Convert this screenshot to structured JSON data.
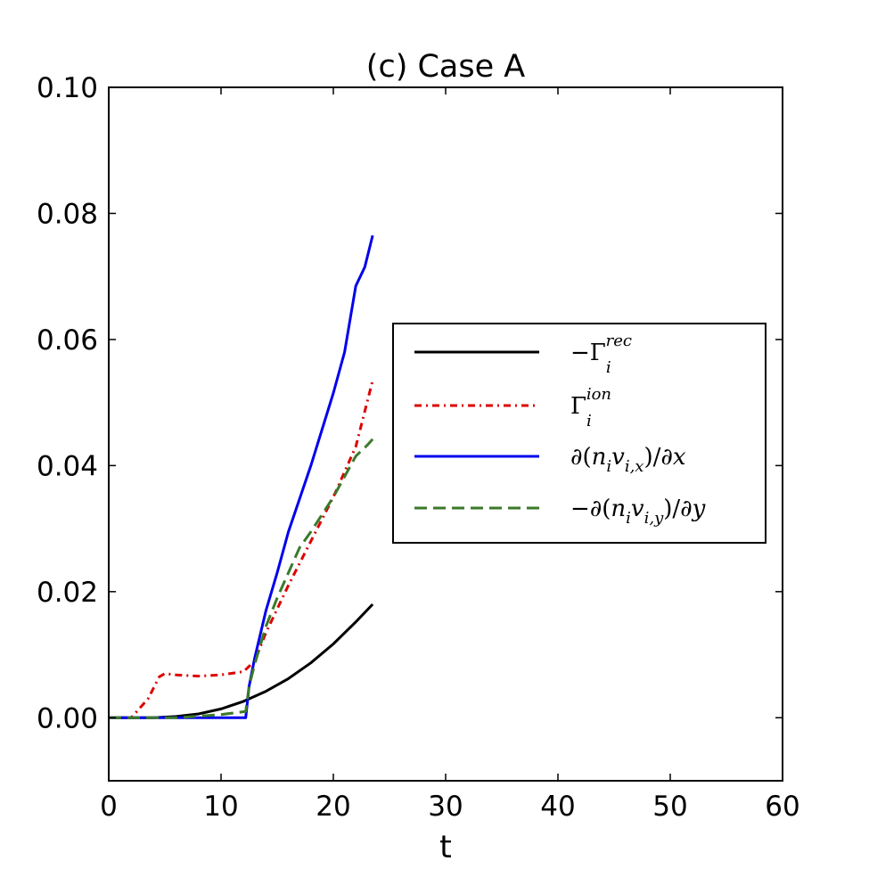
{
  "chart_data": {
    "type": "line",
    "title": "(c) Case A",
    "xlabel": "t",
    "ylabel": "",
    "xlim": [
      0,
      60
    ],
    "ylim": [
      -0.01,
      0.1
    ],
    "xticks": [
      0,
      10,
      20,
      30,
      40,
      50,
      60
    ],
    "xtick_labels": [
      "0",
      "10",
      "20",
      "30",
      "40",
      "50",
      "60"
    ],
    "yticks": [
      0.0,
      0.02,
      0.04,
      0.06,
      0.08,
      0.1
    ],
    "ytick_labels": [
      "0.00",
      "0.02",
      "0.04",
      "0.06",
      "0.08",
      "0.10"
    ],
    "grid": false,
    "legend_position": "right",
    "series": [
      {
        "name": "−Γ_i^{rec}",
        "color": "#000000",
        "style": "solid",
        "x": [
          0,
          2,
          4,
          6,
          8,
          10,
          12,
          14,
          16,
          18,
          20,
          22,
          23.5
        ],
        "y": [
          0.0,
          0.0,
          0.0,
          0.0002,
          0.0006,
          0.0014,
          0.0026,
          0.0042,
          0.0062,
          0.0087,
          0.0117,
          0.0152,
          0.018
        ]
      },
      {
        "name": "Γ_i^{ion}",
        "color": "#dd0000",
        "style": "dashdot",
        "x": [
          0,
          2,
          3.5,
          4.5,
          5,
          6,
          8,
          10,
          12,
          13,
          14,
          16,
          18,
          20,
          22,
          23.5
        ],
        "y": [
          0.0,
          0.0,
          0.003,
          0.0065,
          0.007,
          0.0068,
          0.0066,
          0.0068,
          0.0073,
          0.009,
          0.0135,
          0.021,
          0.028,
          0.035,
          0.043,
          0.0535
        ]
      },
      {
        "name": "∂(n_i v_{i,x})/∂x",
        "color": "#0000ee",
        "style": "solid",
        "x": [
          0,
          6,
          10,
          12.2,
          12.5,
          13,
          14,
          15,
          16,
          18,
          20,
          21,
          22,
          22.8,
          23.5
        ],
        "y": [
          0.0,
          0.0,
          0.0,
          0.0,
          0.005,
          0.0095,
          0.017,
          0.023,
          0.0295,
          0.04,
          0.0515,
          0.058,
          0.0685,
          0.0715,
          0.0765
        ]
      },
      {
        "name": "−∂(n_i v_{i,y})/∂y",
        "color": "#3a7a2a",
        "style": "dashed",
        "x": [
          0,
          6,
          10,
          12.2,
          12.5,
          13,
          14,
          15,
          16,
          17,
          18,
          20,
          22,
          23,
          23.5
        ],
        "y": [
          0.0,
          0.0,
          0.0005,
          0.001,
          0.005,
          0.0085,
          0.0145,
          0.019,
          0.023,
          0.027,
          0.0295,
          0.035,
          0.0415,
          0.0432,
          0.0442
        ]
      }
    ]
  }
}
